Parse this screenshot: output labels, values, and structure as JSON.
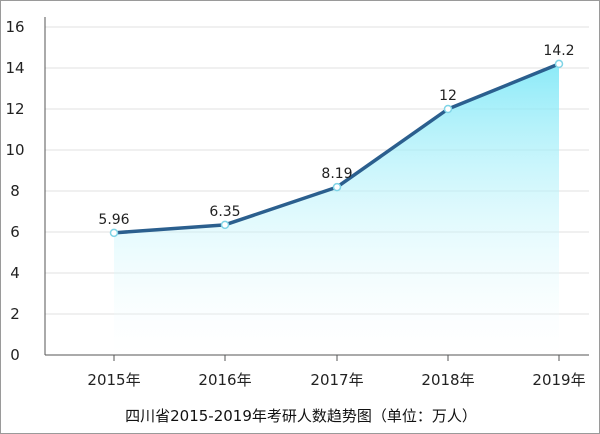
{
  "chart_data": {
    "type": "area",
    "title": "",
    "xlabel": "",
    "ylabel": "",
    "caption": "四川省2015-2019年考研人数趋势图（单位：万人）",
    "categories": [
      "2015年",
      "2016年",
      "2017年",
      "2018年",
      "2019年"
    ],
    "series": [
      {
        "values": [
          5.96,
          6.35,
          8.19,
          12,
          14.2
        ],
        "labels": [
          "5.96",
          "6.35",
          "8.19",
          "12",
          "14.2"
        ]
      }
    ],
    "ylim": [
      0,
      16
    ],
    "yticks": [
      0,
      2,
      4,
      6,
      8,
      10,
      12,
      14,
      16
    ],
    "grid": true,
    "legend": "none",
    "colors": {
      "line": "#2b5f8e",
      "fill_top": "#7fe8f7",
      "fill_bottom": "#ffffff",
      "grid": "#e0e0e0",
      "axis": "#555555"
    }
  }
}
